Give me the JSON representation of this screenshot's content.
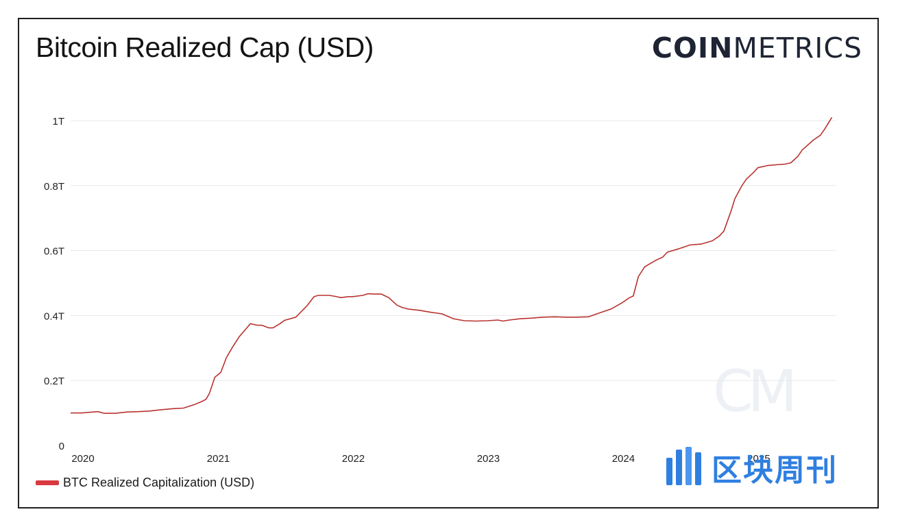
{
  "header": {
    "title": "Bitcoin Realized Cap (USD)",
    "logo_bold": "COIN",
    "logo_light": "METRICS"
  },
  "watermarks": {
    "cm_mark": "CM",
    "badge_text": "区块周刊"
  },
  "legend": {
    "label": "BTC Realized Capitalization (USD)",
    "color": "#d9393f"
  },
  "colors": {
    "line": "#b8322f",
    "grid": "#e9e9e9",
    "badge_blue": "#2f7fe0"
  },
  "chart_data": {
    "type": "line",
    "title": "Bitcoin Realized Cap (USD)",
    "xlabel": "",
    "ylabel": "",
    "x_ticks": [
      "2020",
      "2021",
      "2022",
      "2023",
      "2024",
      "2025"
    ],
    "y_ticks": [
      "0",
      "0.2T",
      "0.4T",
      "0.6T",
      "0.8T",
      "1T"
    ],
    "y_tick_values": [
      0,
      0.2,
      0.4,
      0.6,
      0.8,
      1.0
    ],
    "ylim": [
      0,
      1.0
    ],
    "xlim": [
      "2020-01-01",
      "2025-09-01"
    ],
    "grid": true,
    "legend_position": "bottom-left",
    "series": [
      {
        "name": "BTC Realized Capitalization (USD)",
        "x": [
          "2020-01-01",
          "2020-02-01",
          "2020-03-01",
          "2020-03-15",
          "2020-04-01",
          "2020-05-01",
          "2020-06-01",
          "2020-07-01",
          "2020-08-01",
          "2020-09-01",
          "2020-10-01",
          "2020-11-01",
          "2020-12-01",
          "2020-12-20",
          "2021-01-01",
          "2021-01-10",
          "2021-01-25",
          "2021-02-10",
          "2021-02-25",
          "2021-03-15",
          "2021-04-01",
          "2021-04-20",
          "2021-05-01",
          "2021-05-20",
          "2021-06-01",
          "2021-06-20",
          "2021-07-01",
          "2021-07-20",
          "2021-08-01",
          "2021-09-01",
          "2021-10-01",
          "2021-10-20",
          "2021-11-01",
          "2021-11-15",
          "2021-12-01",
          "2021-12-20",
          "2022-01-01",
          "2022-01-20",
          "2022-02-01",
          "2022-03-01",
          "2022-03-15",
          "2022-04-01",
          "2022-04-20",
          "2022-05-01",
          "2022-05-10",
          "2022-06-01",
          "2022-06-15",
          "2022-07-01",
          "2022-08-01",
          "2022-09-01",
          "2022-10-01",
          "2022-11-01",
          "2022-11-20",
          "2022-12-01",
          "2023-01-01",
          "2023-02-01",
          "2023-03-01",
          "2023-03-15",
          "2023-04-01",
          "2023-05-01",
          "2023-06-01",
          "2023-07-01",
          "2023-08-01",
          "2023-09-01",
          "2023-10-01",
          "2023-11-01",
          "2023-12-01",
          "2024-01-01",
          "2024-01-20",
          "2024-02-01",
          "2024-02-20",
          "2024-03-01",
          "2024-03-15",
          "2024-04-01",
          "2024-05-01",
          "2024-05-20",
          "2024-06-01",
          "2024-07-01",
          "2024-08-01",
          "2024-09-01",
          "2024-10-01",
          "2024-10-20",
          "2024-11-01",
          "2024-11-20",
          "2024-12-01",
          "2024-12-20",
          "2025-01-01",
          "2025-01-20",
          "2025-02-01",
          "2025-03-01",
          "2025-04-01",
          "2025-04-15",
          "2025-05-01",
          "2025-05-20",
          "2025-06-01",
          "2025-07-01",
          "2025-07-20",
          "2025-08-01",
          "2025-08-20"
        ],
        "values": [
          0.1,
          0.1,
          0.103,
          0.104,
          0.099,
          0.099,
          0.103,
          0.104,
          0.106,
          0.11,
          0.113,
          0.115,
          0.126,
          0.135,
          0.142,
          0.16,
          0.21,
          0.225,
          0.27,
          0.305,
          0.335,
          0.36,
          0.375,
          0.37,
          0.37,
          0.362,
          0.362,
          0.375,
          0.385,
          0.395,
          0.43,
          0.458,
          0.462,
          0.462,
          0.462,
          0.458,
          0.455,
          0.458,
          0.458,
          0.462,
          0.467,
          0.466,
          0.466,
          0.46,
          0.455,
          0.432,
          0.425,
          0.42,
          0.416,
          0.41,
          0.405,
          0.39,
          0.386,
          0.384,
          0.383,
          0.384,
          0.386,
          0.383,
          0.386,
          0.39,
          0.392,
          0.395,
          0.396,
          0.395,
          0.395,
          0.396,
          0.408,
          0.42,
          0.432,
          0.44,
          0.455,
          0.46,
          0.52,
          0.55,
          0.57,
          0.58,
          0.595,
          0.605,
          0.617,
          0.62,
          0.63,
          0.645,
          0.66,
          0.72,
          0.76,
          0.8,
          0.82,
          0.84,
          0.855,
          0.862,
          0.865,
          0.866,
          0.87,
          0.89,
          0.91,
          0.94,
          0.955,
          0.975,
          1.01
        ]
      }
    ]
  }
}
